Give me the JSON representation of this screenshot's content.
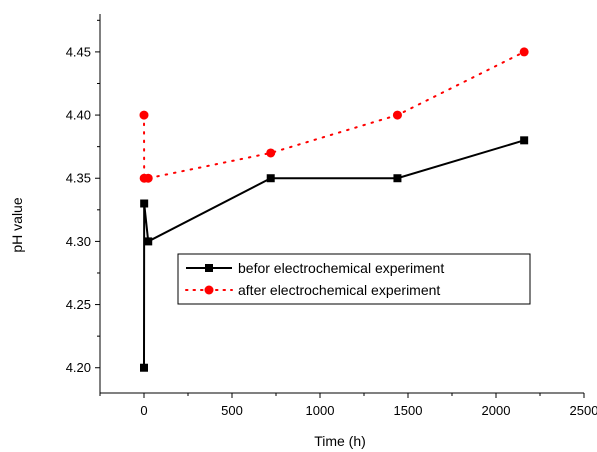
{
  "chart_data": {
    "type": "line",
    "xlabel": "Time (h)",
    "ylabel": "pH  value",
    "xlim": [
      -250,
      2500
    ],
    "ylim": [
      4.18,
      4.48
    ],
    "x_ticks": [
      0,
      500,
      1000,
      1500,
      2000,
      2500
    ],
    "x_tick_labels": [
      "0",
      "500",
      "1000",
      "1500",
      "2000",
      "2500"
    ],
    "y_ticks": [
      4.2,
      4.25,
      4.3,
      4.35,
      4.4,
      4.45
    ],
    "y_tick_labels": [
      "4.20",
      "4.25",
      "4.30",
      "4.35",
      "4.40",
      "4.45"
    ],
    "grid": false,
    "legend_position": "center-right",
    "series": [
      {
        "name": "befor electrochemical experiment",
        "color": "#000000",
        "marker": "square",
        "line_style": "solid",
        "x": [
          0,
          1,
          24,
          720,
          1440,
          2160
        ],
        "y": [
          4.2,
          4.33,
          4.3,
          4.35,
          4.35,
          4.38
        ]
      },
      {
        "name": "after electrochemical experiment",
        "color": "#ff0000",
        "marker": "circle",
        "line_style": "dotted",
        "x": [
          0,
          1,
          24,
          720,
          1440,
          2160
        ],
        "y": [
          4.4,
          4.35,
          4.35,
          4.37,
          4.4,
          4.45
        ]
      }
    ]
  }
}
